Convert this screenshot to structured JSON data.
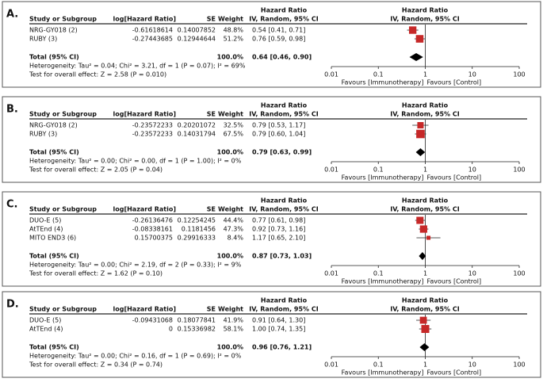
{
  "chart_data": [
    {
      "type": "forest",
      "panel_label": "A.",
      "columns": [
        "Study or Subgroup",
        "log[Hazard Ratio]",
        "SE",
        "Weight",
        "Hazard Ratio",
        "IV, Random, 95% CI"
      ],
      "plot_title": [
        "Hazard Ratio",
        "IV, Random, 95% CI"
      ],
      "studies": [
        {
          "name": "NRG-GY018 (2)",
          "log_hr": -0.61618614,
          "se": 0.14007852,
          "weight": 48.8,
          "weight_label": "48.8%",
          "hr": 0.54,
          "lower": 0.41,
          "upper": 0.71,
          "value_label": "0.54 [0.41, 0.71]"
        },
        {
          "name": "RUBY (3)",
          "log_hr": -0.27443685,
          "se": 0.12944644,
          "weight": 51.2,
          "weight_label": "51.2%",
          "hr": 0.76,
          "lower": 0.59,
          "upper": 0.98,
          "value_label": "0.76 [0.59, 0.98]"
        }
      ],
      "total": {
        "name": "Total (95% CI)",
        "weight": 100,
        "weight_label": "100.0%",
        "hr": 0.64,
        "lower": 0.46,
        "upper": 0.9,
        "value_label": "0.64 [0.46, 0.90]"
      },
      "heterogeneity": "Heterogeneity: Tau² = 0.04; Chi² = 3.21, df = 1 (P = 0.07); I² = 69%",
      "overall_effect": "Test for overall effect: Z = 2.58 (P = 0.010)",
      "log_scale": true,
      "xlim": [
        0.01,
        100
      ],
      "xticks": [
        0.01,
        0.1,
        1,
        10,
        100
      ],
      "favours": [
        "Favours [Immunotherapy]",
        "Favours [Control]"
      ],
      "color": "#c62828"
    },
    {
      "type": "forest",
      "panel_label": "B.",
      "columns": [
        "Study or Subgroup",
        "log[Hazard Ratio]",
        "SE",
        "Weight",
        "Hazard Ratio",
        "IV, Random, 95% CI"
      ],
      "plot_title": [
        "Hazard Ratio",
        "IV, Random, 95% CI"
      ],
      "studies": [
        {
          "name": "NRG-GY018 (2)",
          "log_hr": -0.23572233,
          "se": 0.20201072,
          "weight": 32.5,
          "weight_label": "32.5%",
          "hr": 0.79,
          "lower": 0.53,
          "upper": 1.17,
          "value_label": "0.79 [0.53, 1.17]"
        },
        {
          "name": "RUBY (3)",
          "log_hr": -0.23572233,
          "se": 0.14031794,
          "weight": 67.5,
          "weight_label": "67.5%",
          "hr": 0.79,
          "lower": 0.6,
          "upper": 1.04,
          "value_label": "0.79 [0.60, 1.04]"
        }
      ],
      "total": {
        "name": "Total (95% CI)",
        "weight": 100,
        "weight_label": "100.0%",
        "hr": 0.79,
        "lower": 0.63,
        "upper": 0.99,
        "value_label": "0.79 [0.63, 0.99]"
      },
      "heterogeneity": "Heterogeneity: Tau² = 0.00; Chi² = 0.00, df = 1 (P = 1.00); I² = 0%",
      "overall_effect": "Test for overall effect: Z = 2.05 (P = 0.04)",
      "log_scale": true,
      "xlim": [
        0.01,
        100
      ],
      "xticks": [
        0.01,
        0.1,
        1,
        10,
        100
      ],
      "favours": [
        "Favours [Immunotherapy]",
        "Favours [Control]"
      ],
      "color": "#c62828"
    },
    {
      "type": "forest",
      "panel_label": "C.",
      "columns": [
        "Study or Subgroup",
        "log[Hazard Ratio]",
        "SE",
        "Weight",
        "Hazard Ratio",
        "IV, Random, 95% CI"
      ],
      "plot_title": [
        "Hazard Ratio",
        "IV, Random, 95% CI"
      ],
      "studies": [
        {
          "name": "DUO-E (5)",
          "log_hr": -0.26136476,
          "se": 0.12254245,
          "weight": 44.4,
          "weight_label": "44.4%",
          "hr": 0.77,
          "lower": 0.61,
          "upper": 0.98,
          "value_label": "0.77 [0.61, 0.98]"
        },
        {
          "name": "AtTEnd (4)",
          "log_hr": -0.08338161,
          "se": 0.1181456,
          "weight": 47.3,
          "weight_label": "47.3%",
          "hr": 0.92,
          "lower": 0.73,
          "upper": 1.16,
          "value_label": "0.92 [0.73, 1.16]"
        },
        {
          "name": "MITO END3 (6)",
          "log_hr": 0.15700375,
          "se": 0.29916333,
          "weight": 8.4,
          "weight_label": "8.4%",
          "hr": 1.17,
          "lower": 0.65,
          "upper": 2.1,
          "value_label": "1.17 [0.65, 2.10]"
        }
      ],
      "total": {
        "name": "Total (95% CI)",
        "weight": 100,
        "weight_label": "100.0%",
        "hr": 0.87,
        "lower": 0.73,
        "upper": 1.03,
        "value_label": "0.87 [0.73, 1.03]"
      },
      "heterogeneity": "Heterogeneity: Tau² = 0.00; Chi² = 2.19, df = 2 (P = 0.33); I² = 9%",
      "overall_effect": "Test for overall effect: Z = 1.62 (P = 0.10)",
      "log_scale": true,
      "xlim": [
        0.01,
        100
      ],
      "xticks": [
        0.01,
        0.1,
        1,
        10,
        100
      ],
      "favours": [
        "Favours [Immunotherapy]",
        "Favours [Control]"
      ],
      "color": "#c62828"
    },
    {
      "type": "forest",
      "panel_label": "D.",
      "columns": [
        "Study or Subgroup",
        "log[Hazard Ratio]",
        "SE",
        "Weight",
        "Hazard Ratio",
        "IV, Random, 95% CI"
      ],
      "plot_title": [
        "Hazard Ratio",
        "IV, Random, 95% CI"
      ],
      "studies": [
        {
          "name": "DUO-E (5)",
          "log_hr": -0.09431068,
          "se": 0.18077841,
          "weight": 41.9,
          "weight_label": "41.9%",
          "hr": 0.91,
          "lower": 0.64,
          "upper": 1.3,
          "value_label": "0.91 [0.64, 1.30]"
        },
        {
          "name": "AtTEnd (4)",
          "log_hr": 0,
          "se": 0.15336982,
          "weight": 58.1,
          "weight_label": "58.1%",
          "hr": 1.0,
          "lower": 0.74,
          "upper": 1.35,
          "value_label": "1.00 [0.74, 1.35]"
        }
      ],
      "total": {
        "name": "Total (95% CI)",
        "weight": 100,
        "weight_label": "100.0%",
        "hr": 0.96,
        "lower": 0.76,
        "upper": 1.21,
        "value_label": "0.96 [0.76, 1.21]"
      },
      "heterogeneity": "Heterogeneity: Tau² = 0.00; Chi² = 0.16, df = 1 (P = 0.69); I² = 0%",
      "overall_effect": "Test for overall effect: Z = 0.34 (P = 0.74)",
      "log_scale": true,
      "xlim": [
        0.01,
        100
      ],
      "xticks": [
        0.01,
        0.1,
        1,
        10,
        100
      ],
      "favours": [
        "Favours [Immunotherapy]",
        "Favours [Control]"
      ],
      "color": "#c62828"
    }
  ]
}
